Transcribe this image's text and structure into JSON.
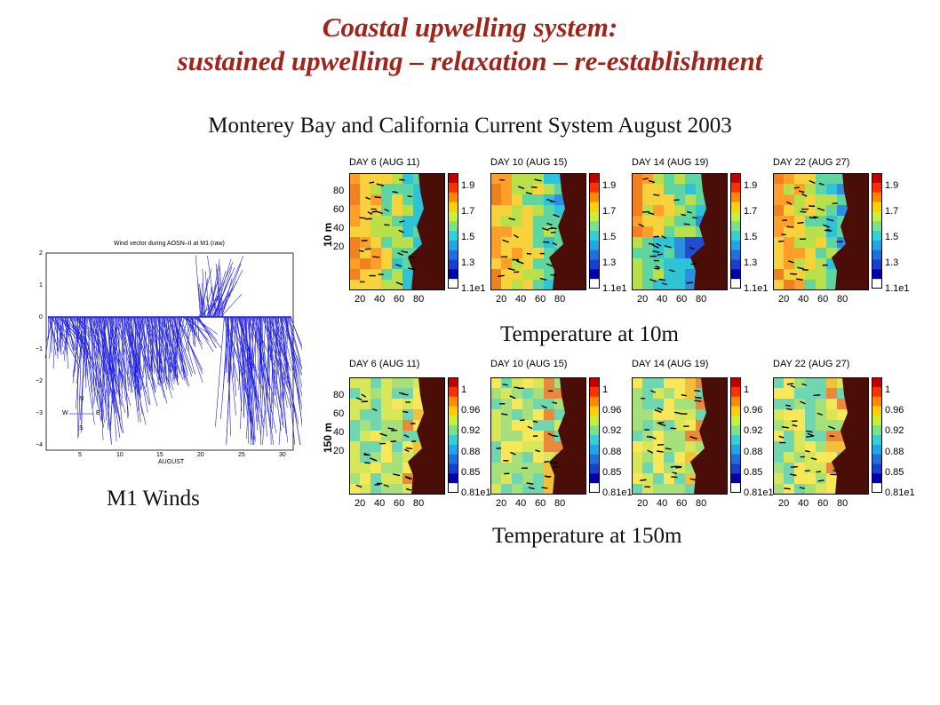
{
  "slide": {
    "title_line1": "Coastal upwelling system:",
    "title_line2": "sustained upwelling – relaxation – re-establishment",
    "subtitle": "Monterey Bay and California Current System August 2003",
    "caption_10m": "Temperature at 10m",
    "caption_150m": "Temperature at 150m",
    "caption_winds": "M1 Winds",
    "title_color": "#a0241c"
  },
  "wind_plot": {
    "title": "Wind vector during AOSN–II at M1 (raw)",
    "xlabel": "AUGUST",
    "xticks": [
      "5",
      "10",
      "15",
      "20",
      "25",
      "30"
    ],
    "yticks": [
      "2",
      "1",
      "0",
      "−1",
      "−2",
      "−3",
      "−4"
    ],
    "compass": {
      "n": "N",
      "s": "S",
      "e": "E",
      "w": "W"
    },
    "line_color": "#2222dd"
  },
  "panels": {
    "depth_10m_label": "10 m",
    "depth_150m_label": "150 m",
    "titles": [
      "DAY  6   (AUG 11)",
      "DAY 10   (AUG 15)",
      "DAY 14   (AUG 19)",
      "DAY 22   (AUG 27)"
    ],
    "xticks": [
      "20",
      "40",
      "60",
      "80"
    ],
    "yticks": [
      "80",
      "60",
      "40",
      "20"
    ],
    "colorbar_10m": [
      "1.9",
      "1.7",
      "1.5",
      "1.3",
      "1.1e1"
    ],
    "colorbar_150m": [
      "1",
      "0.96",
      "0.92",
      "0.88",
      "0.85",
      "0.81e1"
    ],
    "land_color": "#4a0d08"
  }
}
